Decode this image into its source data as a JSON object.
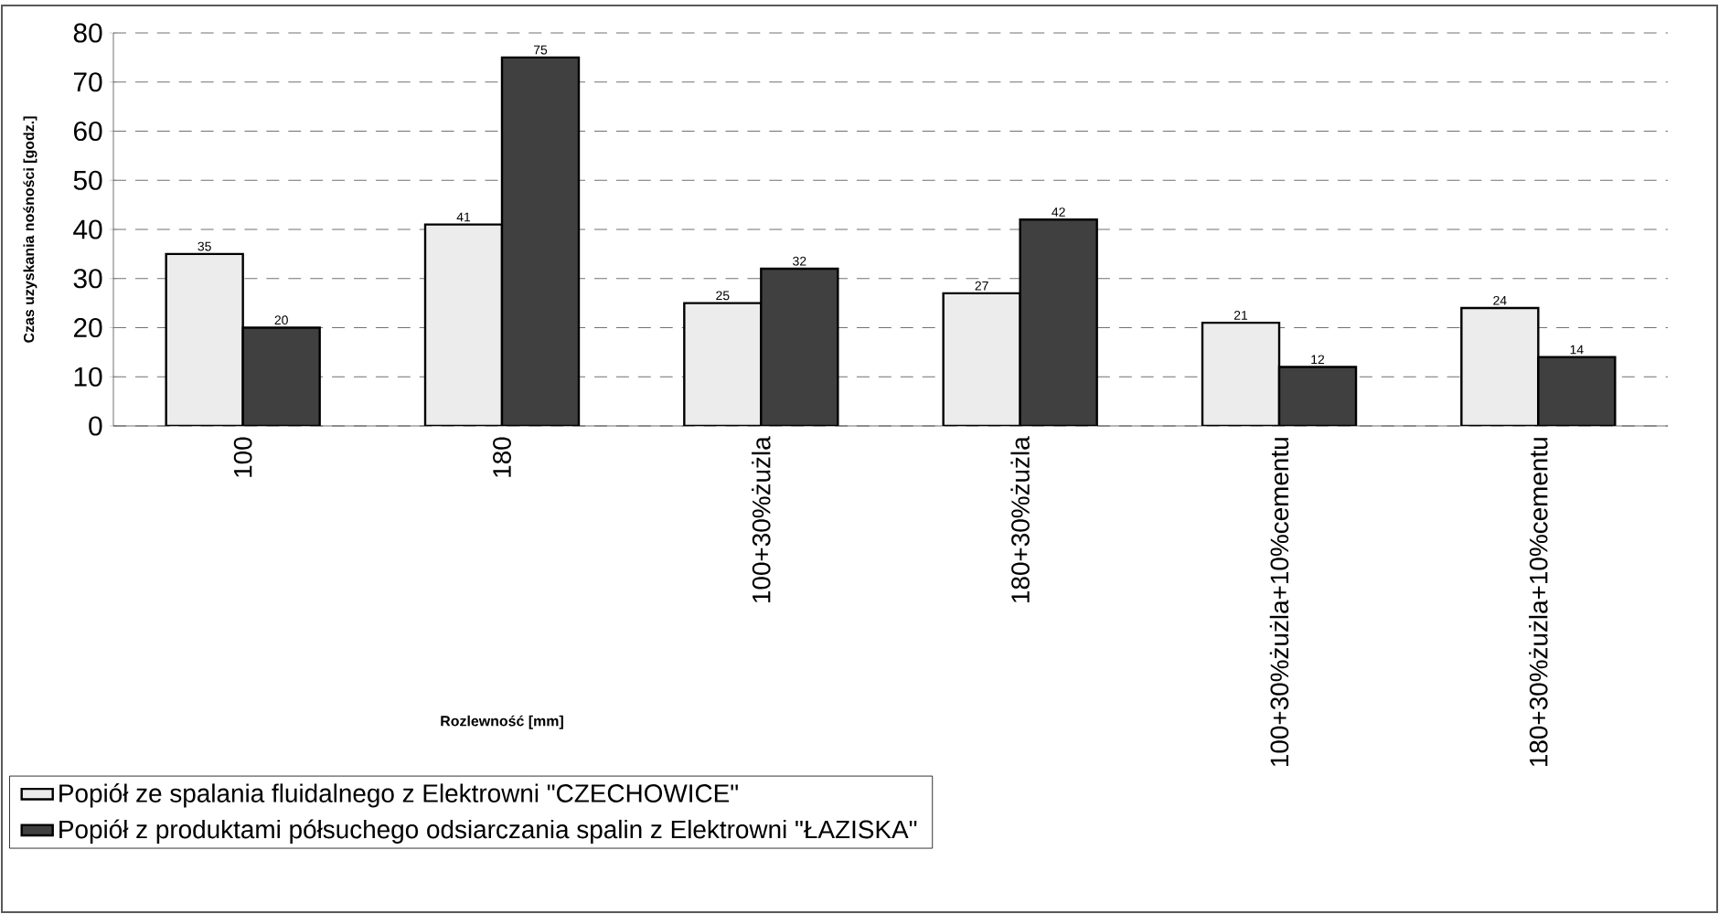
{
  "chart_data": {
    "type": "bar",
    "categories": [
      "100",
      "180",
      "100+30%żużla",
      "180+30%żużla",
      "100+30%żużla+10%cementu",
      "180+30%żużla+10%cementu"
    ],
    "series": [
      {
        "name": "Popiół ze spalania fluidalnego z Elektrowni \"CZECHOWICE\"",
        "color": "#ececec",
        "values": [
          35,
          41,
          25,
          27,
          21,
          24
        ]
      },
      {
        "name": "Popiół z produktami półsuchego odsiarczania spalin z Elektrowni \"ŁAZISKA\"",
        "color": "#404040",
        "values": [
          20,
          75,
          32,
          42,
          12,
          14
        ]
      }
    ],
    "xlabel": "Rozlewność [mm]",
    "ylabel": "Czas uzyskania nośności [godz.]",
    "ylim": [
      0,
      80
    ],
    "yticks": [
      0,
      10,
      20,
      30,
      40,
      50,
      60,
      70,
      80
    ],
    "grid": "y",
    "legend": "bottom left",
    "data_labels": true
  }
}
